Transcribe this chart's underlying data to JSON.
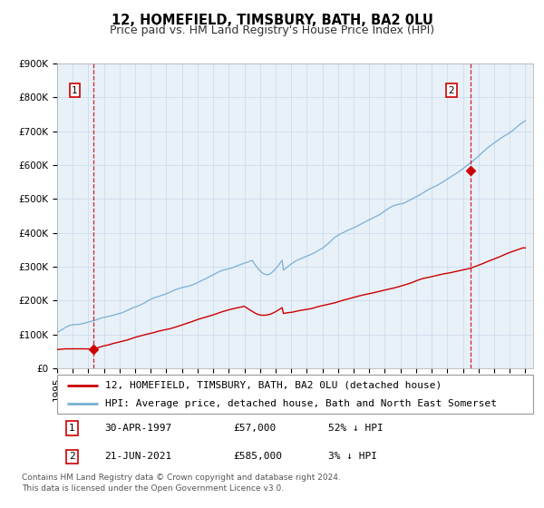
{
  "title": "12, HOMEFIELD, TIMSBURY, BATH, BA2 0LU",
  "subtitle": "Price paid vs. HM Land Registry's House Price Index (HPI)",
  "legend_line1": "12, HOMEFIELD, TIMSBURY, BATH, BA2 0LU (detached house)",
  "legend_line2": "HPI: Average price, detached house, Bath and North East Somerset",
  "footer1": "Contains HM Land Registry data © Crown copyright and database right 2024.",
  "footer2": "This data is licensed under the Open Government Licence v3.0.",
  "annotation1_label": "1",
  "annotation1_date": "30-APR-1997",
  "annotation1_price": "£57,000",
  "annotation1_hpi": "52% ↓ HPI",
  "annotation2_label": "2",
  "annotation2_date": "21-JUN-2021",
  "annotation2_price": "£585,000",
  "annotation2_hpi": "3% ↓ HPI",
  "sale1_x": 1997.33,
  "sale1_y": 57000,
  "sale2_x": 2021.47,
  "sale2_y": 585000,
  "hpi1_y": 57000,
  "hpi2_y": 290000,
  "vline1_x": 1997.33,
  "vline2_x": 2021.47,
  "xlim": [
    1995.0,
    2025.5
  ],
  "ylim": [
    0,
    900000
  ],
  "yticks": [
    0,
    100000,
    200000,
    300000,
    400000,
    500000,
    600000,
    700000,
    800000,
    900000
  ],
  "ytick_labels": [
    "£0",
    "£100K",
    "£200K",
    "£300K",
    "£400K",
    "£500K",
    "£600K",
    "£700K",
    "£800K",
    "£900K"
  ],
  "xticks": [
    1995,
    1996,
    1997,
    1998,
    1999,
    2000,
    2001,
    2002,
    2003,
    2004,
    2005,
    2006,
    2007,
    2008,
    2009,
    2010,
    2011,
    2012,
    2013,
    2014,
    2015,
    2016,
    2017,
    2018,
    2019,
    2020,
    2021,
    2022,
    2023,
    2024,
    2025
  ],
  "property_color": "#cc0000",
  "hpi_color": "#7ab0d4",
  "sale_dot_color": "#cc0000",
  "vline_color": "#cc0000",
  "grid_color": "#ccddee",
  "plot_bg_color": "#e8f0f8",
  "background_color": "#ffffff",
  "box_color": "#cc0000",
  "title_fontsize": 10.5,
  "subtitle_fontsize": 9,
  "axis_fontsize": 7.5,
  "legend_fontsize": 8,
  "annotation_fontsize": 8,
  "footer_fontsize": 6.5
}
